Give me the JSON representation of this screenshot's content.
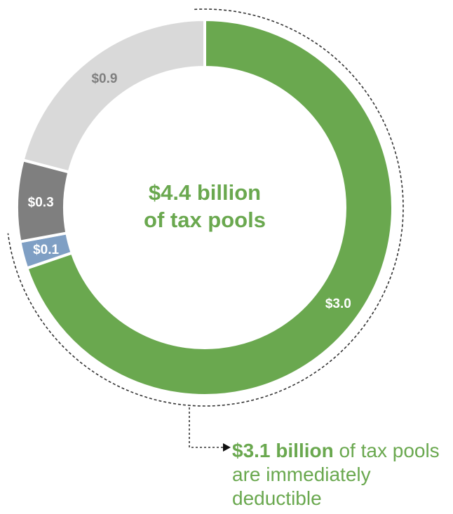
{
  "chart_data": {
    "type": "pie",
    "variant": "donut",
    "center_text": [
      "$4.4 billion",
      "of tax pools"
    ],
    "slices": [
      {
        "value": 3.0,
        "label": "$3.0",
        "color": "#6aa84f",
        "label_color": "#ffffff"
      },
      {
        "value": 0.1,
        "label": "$0.1",
        "color": "#7f9fc4",
        "label_color": "#ffffff"
      },
      {
        "value": 0.3,
        "label": "$0.3",
        "color": "#7f7f7f",
        "label_color": "#ffffff"
      },
      {
        "value": 0.9,
        "label": "$0.9",
        "color": "#d9d9d9",
        "label_color": "#7f7f7f"
      }
    ],
    "total": 4.4,
    "bracket_covers": [
      "$3.0",
      "$0.1"
    ]
  },
  "callout": {
    "bold": "$3.1 billion",
    "rest": " of tax pools are immediately deductible"
  },
  "colors": {
    "accent": "#6aa84f",
    "separator": "#ffffff",
    "bracket": "#333333"
  }
}
